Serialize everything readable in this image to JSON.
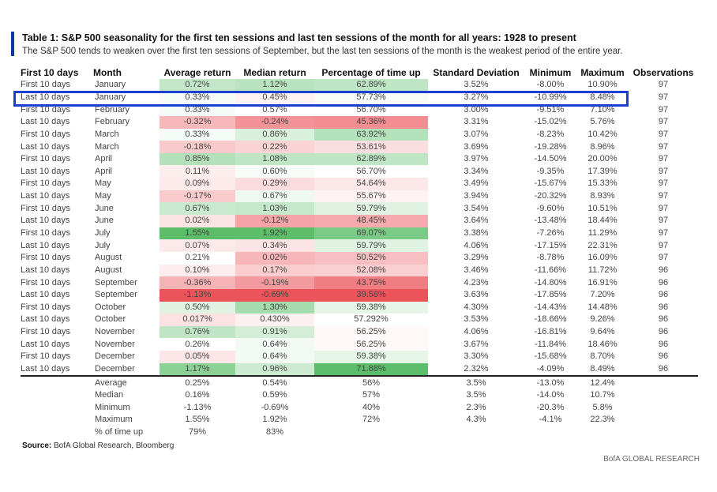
{
  "title": "Table 1: S&P 500 seasonality for the first ten sessions and last ten sessions of the month for all years: 1928 to present",
  "subtitle": "The S&P 500 tends to weaken over the first ten sessions of September, but the last ten sessions of the month is the weakest period of the entire year.",
  "highlight_color": "#1a3fd1",
  "positive_color": "#3fb24f",
  "negative_color": "#e8363e",
  "headers": [
    "First 10 days",
    "Month",
    "Average return",
    "Median return",
    "Percentage of time up",
    "Standard Deviation",
    "Minimum",
    "Maximum",
    "Observations"
  ],
  "rows": [
    {
      "period": "First 10 days",
      "month": "January",
      "avg": "0.72%",
      "median": "1.12%",
      "pct_up": "62.89%",
      "stdev": "3.52%",
      "min": "-8.00%",
      "max": "10.90%",
      "obs": "97"
    },
    {
      "period": "Last 10 days",
      "month": "January",
      "avg": "0.33%",
      "median": "0.45%",
      "pct_up": "57.73%",
      "stdev": "3.27%",
      "min": "-10.99%",
      "max": "8.48%",
      "obs": "97"
    },
    {
      "period": "First 10 days",
      "month": "February",
      "avg": "0.33%",
      "median": "0.57%",
      "pct_up": "56.70%",
      "stdev": "3.00%",
      "min": "-9.51%",
      "max": "7.10%",
      "obs": "97"
    },
    {
      "period": "Last 10 days",
      "month": "February",
      "avg": "-0.32%",
      "median": "-0.24%",
      "pct_up": "45.36%",
      "stdev": "3.31%",
      "min": "-15.02%",
      "max": "5.76%",
      "obs": "97"
    },
    {
      "period": "First 10 days",
      "month": "March",
      "avg": "0.33%",
      "median": "0.86%",
      "pct_up": "63.92%",
      "stdev": "3.07%",
      "min": "-8.23%",
      "max": "10.42%",
      "obs": "97"
    },
    {
      "period": "Last 10 days",
      "month": "March",
      "avg": "-0.18%",
      "median": "0.22%",
      "pct_up": "53.61%",
      "stdev": "3.69%",
      "min": "-19.28%",
      "max": "8.96%",
      "obs": "97"
    },
    {
      "period": "First 10 days",
      "month": "April",
      "avg": "0.85%",
      "median": "1.08%",
      "pct_up": "62.89%",
      "stdev": "3.97%",
      "min": "-14.50%",
      "max": "20.00%",
      "obs": "97"
    },
    {
      "period": "Last 10 days",
      "month": "April",
      "avg": "0.11%",
      "median": "0.60%",
      "pct_up": "56.70%",
      "stdev": "3.34%",
      "min": "-9.35%",
      "max": "17.39%",
      "obs": "97"
    },
    {
      "period": "First 10 days",
      "month": "May",
      "avg": "0.09%",
      "median": "0.29%",
      "pct_up": "54.64%",
      "stdev": "3.49%",
      "min": "-15.67%",
      "max": "15.33%",
      "obs": "97"
    },
    {
      "period": "Last 10 days",
      "month": "May",
      "avg": "-0.17%",
      "median": "0.67%",
      "pct_up": "55.67%",
      "stdev": "3.94%",
      "min": "-20.32%",
      "max": "8.93%",
      "obs": "97"
    },
    {
      "period": "First 10 days",
      "month": "June",
      "avg": "0.67%",
      "median": "1.03%",
      "pct_up": "59.79%",
      "stdev": "3.54%",
      "min": "-9.60%",
      "max": "10.51%",
      "obs": "97"
    },
    {
      "period": "Last 10 days",
      "month": "June",
      "avg": "0.02%",
      "median": "-0.12%",
      "pct_up": "48.45%",
      "stdev": "3.64%",
      "min": "-13.48%",
      "max": "18.44%",
      "obs": "97"
    },
    {
      "period": "First 10 days",
      "month": "July",
      "avg": "1.55%",
      "median": "1.92%",
      "pct_up": "69.07%",
      "stdev": "3.38%",
      "min": "-7.26%",
      "max": "11.29%",
      "obs": "97"
    },
    {
      "period": "Last 10 days",
      "month": "July",
      "avg": "0.07%",
      "median": "0.34%",
      "pct_up": "59.79%",
      "stdev": "4.06%",
      "min": "-17.15%",
      "max": "22.31%",
      "obs": "97"
    },
    {
      "period": "First 10 days",
      "month": "August",
      "avg": "0.21%",
      "median": "0.02%",
      "pct_up": "50.52%",
      "stdev": "3.29%",
      "min": "-8.78%",
      "max": "16.09%",
      "obs": "97"
    },
    {
      "period": "Last 10 days",
      "month": "August",
      "avg": "0.10%",
      "median": "0.17%",
      "pct_up": "52.08%",
      "stdev": "3.46%",
      "min": "-11.66%",
      "max": "11.72%",
      "obs": "96"
    },
    {
      "period": "First 10 days",
      "month": "September",
      "avg": "-0.36%",
      "median": "-0.19%",
      "pct_up": "43.75%",
      "stdev": "4.23%",
      "min": "-14.80%",
      "max": "16.91%",
      "obs": "96"
    },
    {
      "period": "Last 10 days",
      "month": "September",
      "avg": "-1.13%",
      "median": "-0.69%",
      "pct_up": "39.58%",
      "stdev": "3.63%",
      "min": "-17.85%",
      "max": "7.20%",
      "obs": "96"
    },
    {
      "period": "First 10 days",
      "month": "October",
      "avg": "0.50%",
      "median": "1.30%",
      "pct_up": "59.38%",
      "stdev": "4.30%",
      "min": "-14.43%",
      "max": "14.48%",
      "obs": "96"
    },
    {
      "period": "Last 10 days",
      "month": "October",
      "avg": "0.017%",
      "median": "0.430%",
      "pct_up": "57.292%",
      "stdev": "3.53%",
      "min": "-18.66%",
      "max": "9.26%",
      "obs": "96"
    },
    {
      "period": "First 10 days",
      "month": "November",
      "avg": "0.76%",
      "median": "0.91%",
      "pct_up": "56.25%",
      "stdev": "4.06%",
      "min": "-16.81%",
      "max": "9.64%",
      "obs": "96"
    },
    {
      "period": "Last 10 days",
      "month": "November",
      "avg": "0.26%",
      "median": "0.64%",
      "pct_up": "56.25%",
      "stdev": "3.67%",
      "min": "-11.84%",
      "max": "18.46%",
      "obs": "96"
    },
    {
      "period": "First 10 days",
      "month": "December",
      "avg": "0.05%",
      "median": "0.64%",
      "pct_up": "59.38%",
      "stdev": "3.30%",
      "min": "-15.68%",
      "max": "8.70%",
      "obs": "96"
    },
    {
      "period": "Last 10 days",
      "month": "December",
      "avg": "1.17%",
      "median": "0.96%",
      "pct_up": "71.88%",
      "stdev": "2.32%",
      "min": "-4.09%",
      "max": "8.49%",
      "obs": "96"
    }
  ],
  "summary": [
    {
      "label": "Average",
      "avg": "0.25%",
      "median": "0.54%",
      "pct_up": "56%",
      "stdev": "3.5%",
      "min": "-13.0%",
      "max": "12.4%"
    },
    {
      "label": "Median",
      "avg": "0.16%",
      "median": "0.59%",
      "pct_up": "57%",
      "stdev": "3.5%",
      "min": "-14.0%",
      "max": "10.7%"
    },
    {
      "label": "Minimum",
      "avg": "-1.13%",
      "median": "-0.69%",
      "pct_up": "40%",
      "stdev": "2.3%",
      "min": "-20.3%",
      "max": "5.8%"
    },
    {
      "label": "Maximum",
      "avg": "1.55%",
      "median": "1.92%",
      "pct_up": "72%",
      "stdev": "4.3%",
      "min": "-4.1%",
      "max": "22.3%"
    },
    {
      "label": "% of time up",
      "avg": "79%",
      "median": "83%",
      "pct_up": "",
      "stdev": "",
      "min": "",
      "max": ""
    }
  ],
  "source_label": "Source:",
  "source_text": " BofA Global Research, Bloomberg",
  "credit": "BofA GLOBAL RESEARCH"
}
